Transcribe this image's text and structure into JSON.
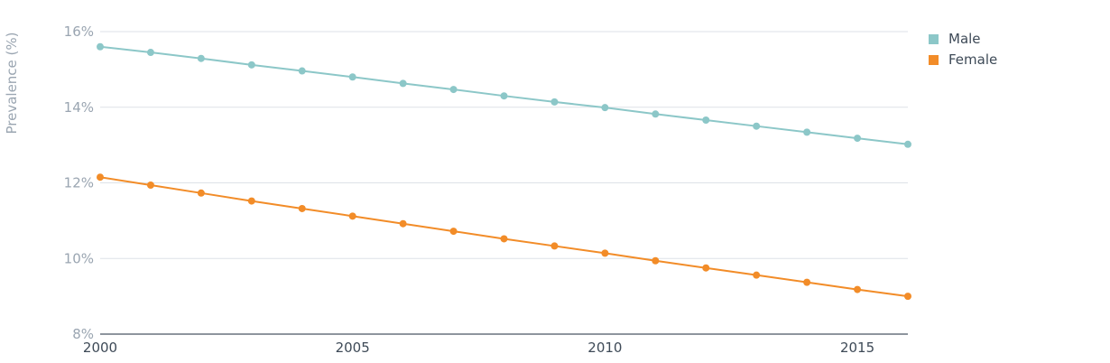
{
  "chart_data": {
    "type": "line",
    "ylabel": "Prevalence (%)",
    "xlabel": "",
    "x": [
      2000,
      2001,
      2002,
      2003,
      2004,
      2005,
      2006,
      2007,
      2008,
      2009,
      2010,
      2011,
      2012,
      2013,
      2014,
      2015,
      2016
    ],
    "xlim": [
      2000,
      2016
    ],
    "ylim": [
      8,
      16
    ],
    "x_ticks": [
      2000,
      2005,
      2010,
      2015
    ],
    "x_tick_labels": [
      "2000",
      "2005",
      "2010",
      "2015"
    ],
    "y_ticks": [
      8,
      10,
      12,
      14,
      16
    ],
    "y_tick_labels": [
      "8%",
      "10%",
      "12%",
      "14%",
      "16%"
    ],
    "grid": "horizontal",
    "legend_position": "top-right",
    "series": [
      {
        "name": "Male",
        "color": "#8cc7c8",
        "values": [
          15.6,
          15.45,
          15.29,
          15.12,
          14.96,
          14.8,
          14.63,
          14.47,
          14.3,
          14.14,
          13.99,
          13.82,
          13.66,
          13.5,
          13.34,
          13.18,
          13.02
        ]
      },
      {
        "name": "Female",
        "color": "#f28c28",
        "values": [
          12.15,
          11.94,
          11.73,
          11.52,
          11.32,
          11.12,
          10.92,
          10.72,
          10.52,
          10.33,
          10.14,
          9.94,
          9.75,
          9.56,
          9.37,
          9.18,
          9.0
        ]
      }
    ]
  }
}
